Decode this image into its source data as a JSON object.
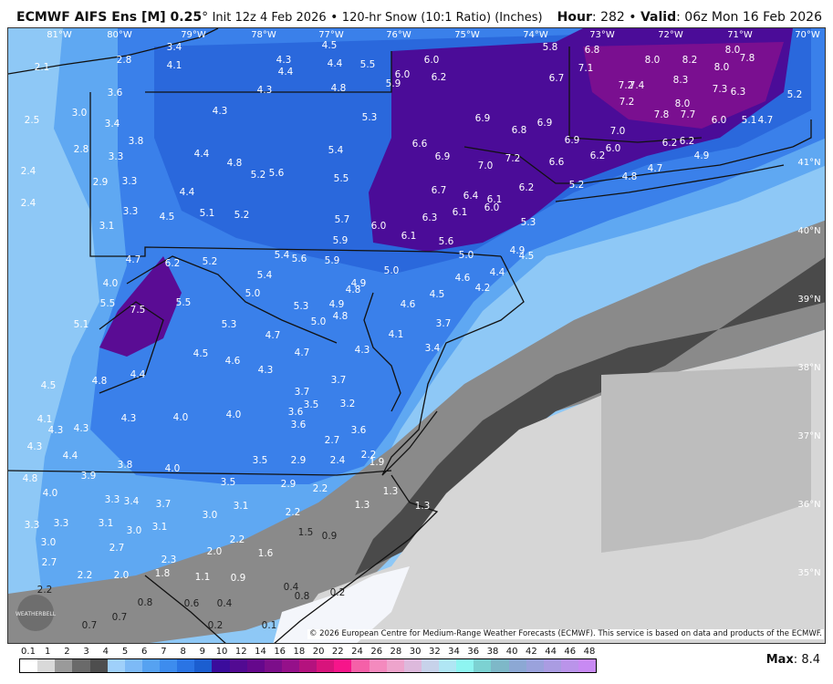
{
  "header": {
    "model": "ECMWF AIFS Ens [M] 0.25",
    "degree": "°",
    "init": "Init 12z 4 Feb 2026",
    "sep": "•",
    "product": "120-hr Snow (10:1 Ratio) (Inches)",
    "hour_label": "Hour",
    "hour": "282",
    "valid_label": "Valid",
    "valid": "06z Mon 16 Feb 2026"
  },
  "map": {
    "longitudes": [
      "81°W",
      "80°W",
      "79°W",
      "78°W",
      "77°W",
      "76°W",
      "75°W",
      "74°W",
      "73°W",
      "72°W",
      "71°W",
      "70°W"
    ],
    "latitudes": [
      "41°N",
      "40°N",
      "39°N",
      "38°N",
      "37°N",
      "36°N",
      "35°N"
    ],
    "values": [
      "2.1",
      "2.8",
      "3.4",
      "4.1",
      "3.6",
      "2.5",
      "3.0",
      "3.4",
      "3.8",
      "2.8",
      "3.3",
      "2.4",
      "2.9",
      "3.3",
      "2.4",
      "3.3",
      "3.1",
      "4.4",
      "4.5",
      "4.4",
      "4.8",
      "5.2",
      "5.6",
      "5.1",
      "5.2",
      "4.3",
      "4.3",
      "4.3",
      "4.4",
      "4.5",
      "4.4",
      "5.5",
      "4.8",
      "5.9",
      "6.0",
      "5.3",
      "5.4",
      "5.5",
      "5.7",
      "6.0",
      "5.9",
      "6.0",
      "6.2",
      "5.8",
      "6.8",
      "7.1",
      "6.7",
      "8.0",
      "8.2",
      "8.0",
      "8.0",
      "7.8",
      "8.3",
      "7.2",
      "7.4",
      "7.3",
      "6.3",
      "5.2",
      "7.2",
      "7.8",
      "8.0",
      "7.7",
      "6.0",
      "5.1",
      "4.7",
      "6.9",
      "6.8",
      "6.9",
      "6.6",
      "6.9",
      "7.0",
      "7.2",
      "6.6",
      "6.9",
      "7.0",
      "6.0",
      "6.2",
      "6.2",
      "6.2",
      "4.9",
      "4.7",
      "4.8",
      "5.2",
      "6.7",
      "6.4",
      "6.1",
      "6.2",
      "6.0",
      "6.1",
      "6.3",
      "5.3",
      "6.1",
      "5.6",
      "5.0",
      "4.9",
      "4.5",
      "4.4",
      "4.6",
      "4.2",
      "4.5",
      "3.7",
      "3.4",
      "4.7",
      "6.2",
      "5.2",
      "4.0",
      "5.5",
      "7.5",
      "5.5",
      "5.1",
      "5.4",
      "5.6",
      "5.9",
      "5.4",
      "5.0",
      "5.3",
      "4.9",
      "4.8",
      "5.0",
      "4.9",
      "4.8",
      "5.0",
      "4.6",
      "4.1",
      "4.3",
      "5.3",
      "4.7",
      "4.7",
      "4.5",
      "4.6",
      "4.3",
      "4.5",
      "4.8",
      "4.4",
      "3.7",
      "3.7",
      "3.5",
      "3.6",
      "3.2",
      "3.6",
      "3.6",
      "4.1",
      "4.3",
      "4.3",
      "4.3",
      "4.0",
      "4.0",
      "2.7",
      "2.2",
      "4.3",
      "4.4",
      "3.5",
      "2.9",
      "2.4",
      "1.9",
      "4.8",
      "3.9",
      "3.8",
      "4.0",
      "3.5",
      "2.9",
      "2.2",
      "1.3",
      "1.3",
      "1.3",
      "4.0",
      "3.3",
      "3.4",
      "3.7",
      "3.1",
      "3.0",
      "2.2",
      "3.3",
      "3.3",
      "3.1",
      "3.0",
      "3.1",
      "1.5",
      "0.9",
      "3.0",
      "2.7",
      "2.2",
      "2.0",
      "1.6",
      "2.7",
      "2.3",
      "2.2",
      "2.0",
      "1.8",
      "1.1",
      "0.9",
      "2.2",
      "0.4",
      "0.8",
      "0.8",
      "0.6",
      "0.4",
      "0.2",
      "0.7",
      "0.7",
      "0.2",
      "0.1"
    ],
    "copyright": "© 2026 European Centre for Medium-Range Weather Forecasts (ECMWF). This service is based on data and products of the ECMWF.",
    "logo_text": "WEATHERBELL"
  },
  "colorbar": {
    "labels": [
      "0.1",
      "1",
      "2",
      "3",
      "4",
      "5",
      "6",
      "7",
      "8",
      "9",
      "10",
      "12",
      "14",
      "16",
      "18",
      "20",
      "22",
      "24",
      "26",
      "28",
      "30",
      "32",
      "34",
      "36",
      "38",
      "40",
      "42",
      "44",
      "46",
      "48"
    ],
    "colors": [
      "#ffffff",
      "#d9d9d9",
      "#9a9a9a",
      "#6a6a6a",
      "#4e4e4e",
      "#9fd0fa",
      "#7dbaf6",
      "#56a2f1",
      "#3d8cee",
      "#2a74e4",
      "#1b5ed0",
      "#3b0c9c",
      "#520a92",
      "#65088c",
      "#7c0e8a",
      "#95108a",
      "#b4127e",
      "#d8147c",
      "#f6158a",
      "#f560a8",
      "#f48abe",
      "#eea4cc",
      "#ddb9dc",
      "#c7d2ea",
      "#b0e6f4",
      "#8ef5f1",
      "#7cd2d2",
      "#7eb8c8",
      "#8ca8d4",
      "#9aa2dc",
      "#aa9ce2",
      "#ba94ea",
      "#c88af3"
    ],
    "max_label": "Max",
    "max_value": "8.4"
  }
}
